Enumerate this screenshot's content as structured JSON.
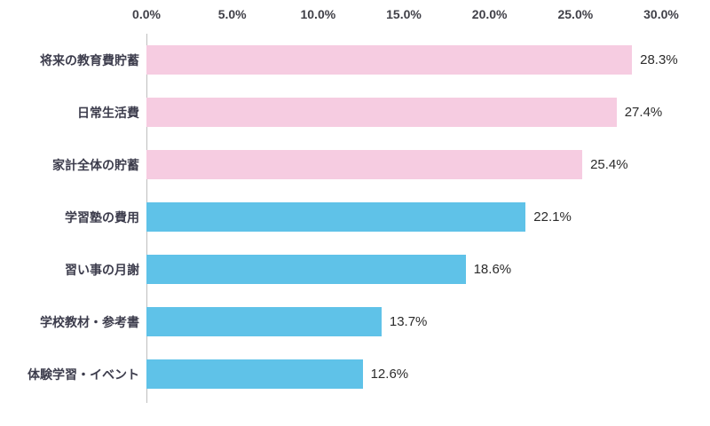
{
  "chart_data": {
    "type": "bar",
    "orientation": "horizontal",
    "title": "",
    "xlabel": "",
    "ylabel": "",
    "xlim": [
      0,
      30
    ],
    "grid": false,
    "legend": "none",
    "categories": [
      "将来の教育費貯蓄",
      "日常生活費",
      "家計全体の貯蓄",
      "学習塾の費用",
      "習い事の月謝",
      "学校教材・参考書",
      "体験学習・イベント"
    ],
    "values": [
      28.3,
      27.4,
      25.4,
      22.1,
      18.6,
      13.7,
      12.6
    ],
    "value_labels": [
      "28.3%",
      "27.4%",
      "25.4%",
      "22.1%",
      "18.6%",
      "13.7%",
      "12.6%"
    ],
    "bar_colors": [
      "#F6CCE1",
      "#F6CCE1",
      "#F6CCE1",
      "#5FC2E8",
      "#5FC2E8",
      "#5FC2E8",
      "#5FC2E8"
    ],
    "x_ticks": [
      "0.0%",
      "5.0%",
      "10.0%",
      "15.0%",
      "20.0%",
      "25.0%",
      "30.0%"
    ],
    "x_tick_values": [
      0,
      5,
      10,
      15,
      20,
      25,
      30
    ]
  },
  "colors": {
    "pink": "#F6CCE1",
    "blue": "#5FC2E8",
    "axis_line": "#bfbfbf",
    "tick_text": "#404048",
    "category_text": "#3c3c4c",
    "value_text": "#2b2b2b",
    "background": "#ffffff"
  }
}
